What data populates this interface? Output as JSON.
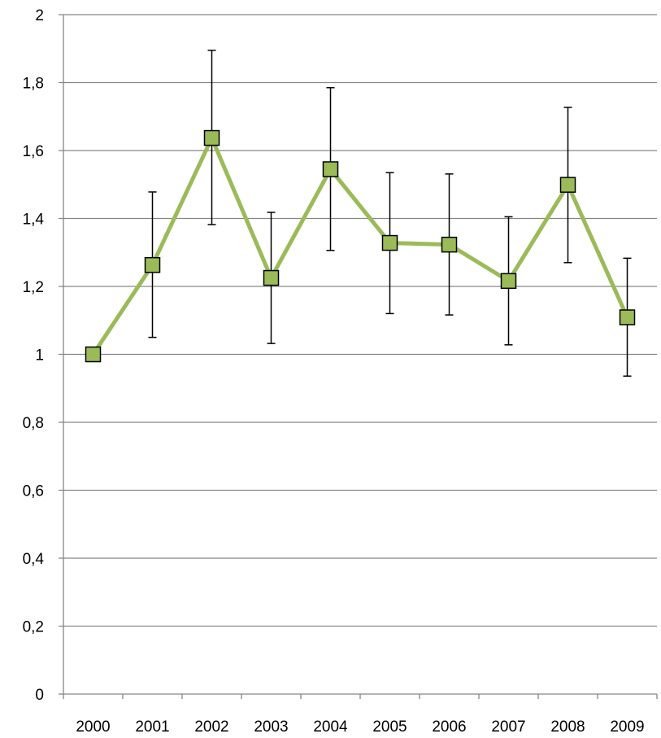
{
  "chart_data": {
    "type": "line",
    "title": "",
    "xlabel": "",
    "ylabel": "",
    "categories": [
      "2000",
      "2001",
      "2002",
      "2003",
      "2004",
      "2005",
      "2006",
      "2007",
      "2008",
      "2009"
    ],
    "series": [
      {
        "values": [
          1.0,
          1.263,
          1.637,
          1.225,
          1.545,
          1.328,
          1.323,
          1.216,
          1.499,
          1.109
        ],
        "error_low": [
          1.0,
          1.05,
          1.382,
          1.032,
          1.306,
          1.12,
          1.116,
          1.028,
          1.27,
          0.936
        ],
        "error_high": [
          1.0,
          1.478,
          1.895,
          1.418,
          1.785,
          1.535,
          1.531,
          1.405,
          1.727,
          1.283
        ],
        "color": "#9bbb59",
        "marker": "square"
      }
    ],
    "ylim": [
      0,
      2
    ],
    "yticks": [
      "0",
      "0,2",
      "0,4",
      "0,6",
      "0,8",
      "1",
      "1,2",
      "1,4",
      "1,6",
      "1,8",
      "2"
    ],
    "grid": true,
    "legend": "none",
    "colors": {
      "line": "#9bbb59",
      "marker_fill": "#9bbb59",
      "marker_border": "#000000",
      "gridline": "#868686",
      "axis": "#868686",
      "error_bar": "#000000"
    }
  }
}
